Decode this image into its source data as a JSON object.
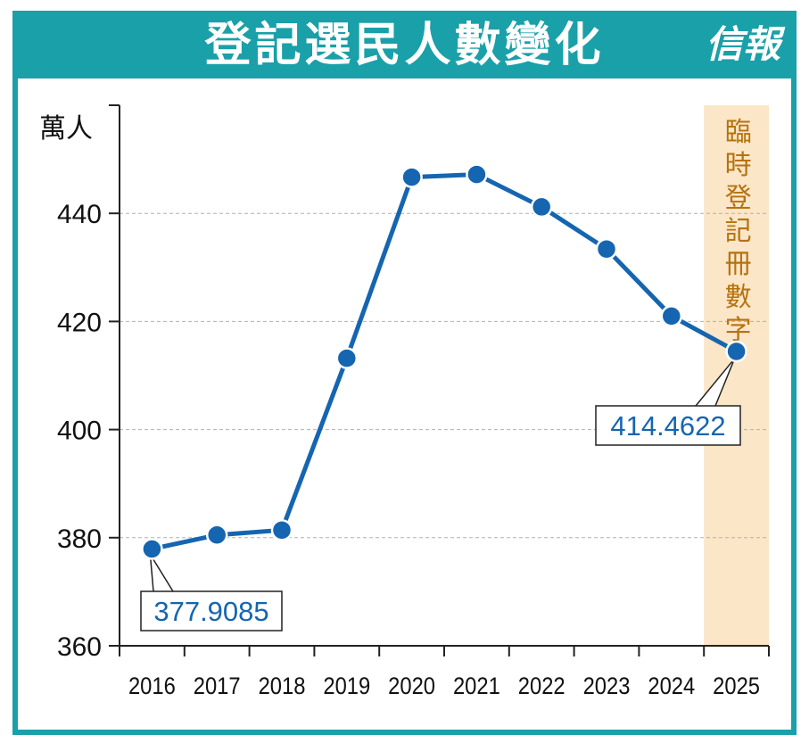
{
  "header": {
    "title": "登記選民人數變化",
    "logo": "信報"
  },
  "colors": {
    "frame": "#1aa0a8",
    "line": "#1565b0",
    "shade": "#fbe6c8",
    "shade_text": "#b5730e",
    "label_text": "#1565b0"
  },
  "chart_data": {
    "type": "line",
    "title": "登記選民人數變化",
    "ylabel": "萬人",
    "xlabel": "",
    "categories": [
      "2016",
      "2017",
      "2018",
      "2019",
      "2020",
      "2021",
      "2022",
      "2023",
      "2024",
      "2025"
    ],
    "values": [
      377.9085,
      380.5,
      381.4,
      413.2,
      446.7,
      447.2,
      441.2,
      433.4,
      421.0,
      414.4622
    ],
    "ylim": [
      360,
      460
    ],
    "yticks": [
      360,
      380,
      400,
      420,
      440
    ],
    "grid": true,
    "annotations": [
      {
        "category": "2016",
        "text": "377.9085"
      },
      {
        "category": "2025",
        "text": "414.4622"
      }
    ],
    "highlight": {
      "category": "2025",
      "text": "臨時登記冊數字"
    }
  }
}
